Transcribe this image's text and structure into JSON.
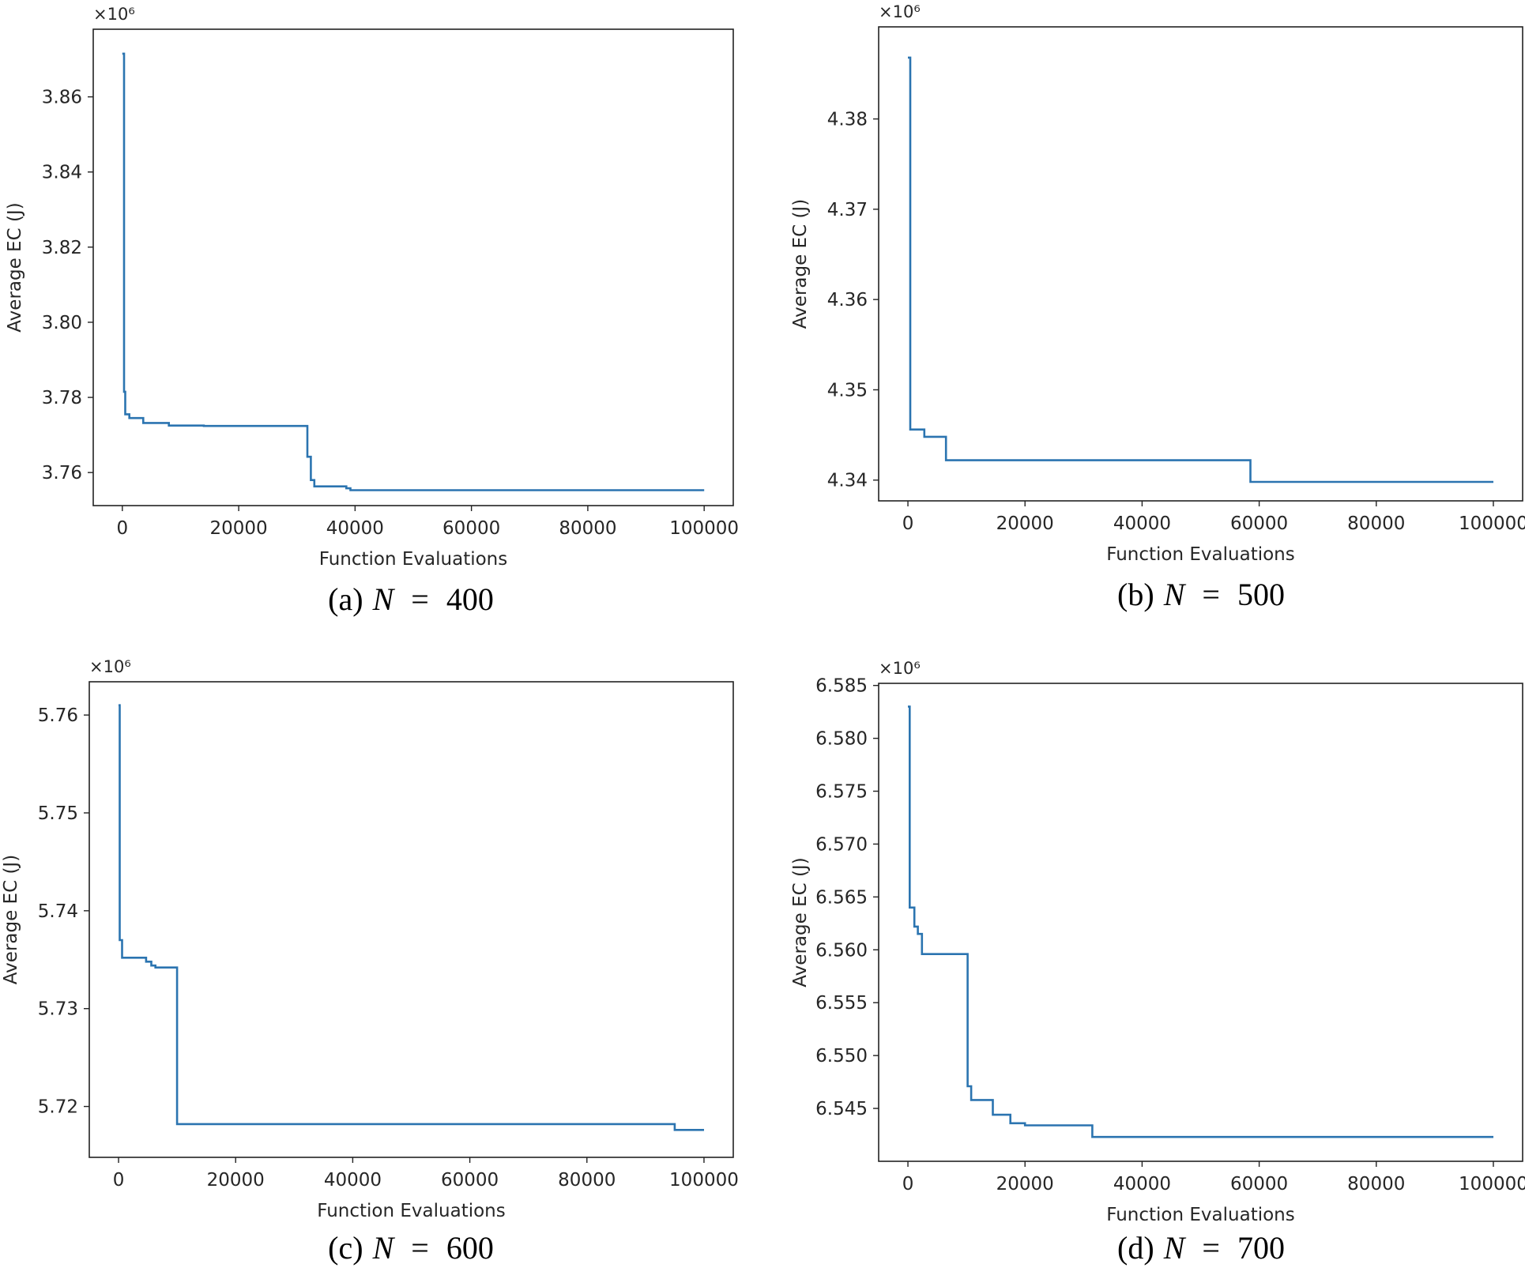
{
  "colors": {
    "line": "#2b74b0",
    "axes": "#222222",
    "text": "#262626"
  },
  "chart_data": [
    {
      "type": "line",
      "caption": {
        "label": "(a)",
        "var": "N",
        "eq": "=",
        "value": "400"
      },
      "title": "",
      "xlabel": "Function Evaluations",
      "ylabel": "Average EC (J)",
      "y_multiplier": "×10⁶",
      "xlim": [
        -5000,
        105000
      ],
      "ylim": [
        3.7512,
        3.878
      ],
      "xticks": [
        0,
        20000,
        40000,
        60000,
        80000,
        100000
      ],
      "xtick_labels": [
        "0",
        "20000",
        "40000",
        "60000",
        "80000",
        "100000"
      ],
      "yticks": [
        3.76,
        3.78,
        3.8,
        3.82,
        3.84,
        3.86
      ],
      "ytick_labels": [
        "3.76",
        "3.78",
        "3.80",
        "3.82",
        "3.84",
        "3.86"
      ],
      "grid": false,
      "series": [
        {
          "name": "Average EC",
          "step": true,
          "points": [
            [
              0,
              3.8715
            ],
            [
              300,
              3.7815
            ],
            [
              500,
              3.7755
            ],
            [
              1200,
              3.7745
            ],
            [
              3600,
              3.7732
            ],
            [
              8000,
              3.7725
            ],
            [
              14000,
              3.7724
            ],
            [
              31500,
              3.7724
            ],
            [
              31800,
              3.7642
            ],
            [
              32400,
              3.758
            ],
            [
              33000,
              3.7563
            ],
            [
              38500,
              3.7558
            ],
            [
              39200,
              3.7553
            ],
            [
              100000,
              3.7553
            ]
          ]
        }
      ]
    },
    {
      "type": "line",
      "caption": {
        "label": "(b)",
        "var": "N",
        "eq": "=",
        "value": "500"
      },
      "title": "",
      "xlabel": "Function Evaluations",
      "ylabel": "Average EC (J)",
      "y_multiplier": "×10⁶",
      "xlim": [
        -5000,
        105000
      ],
      "ylim": [
        4.3377,
        4.3902
      ],
      "xticks": [
        0,
        20000,
        40000,
        60000,
        80000,
        100000
      ],
      "xtick_labels": [
        "0",
        "20000",
        "40000",
        "60000",
        "80000",
        "100000"
      ],
      "yticks": [
        4.34,
        4.35,
        4.36,
        4.37,
        4.38
      ],
      "ytick_labels": [
        "4.34",
        "4.35",
        "4.36",
        "4.37",
        "4.38"
      ],
      "grid": false,
      "series": [
        {
          "name": "Average EC",
          "step": true,
          "points": [
            [
              0,
              4.3868
            ],
            [
              400,
              4.3456
            ],
            [
              2800,
              4.3448
            ],
            [
              6500,
              4.3422
            ],
            [
              58500,
              4.3398
            ],
            [
              100000,
              4.3398
            ]
          ]
        }
      ]
    },
    {
      "type": "line",
      "caption": {
        "label": "(c)",
        "var": "N",
        "eq": "=",
        "value": "600"
      },
      "title": "",
      "xlabel": "Function Evaluations",
      "ylabel": "Average EC (J)",
      "y_multiplier": "×10⁶",
      "xlim": [
        -5000,
        105000
      ],
      "ylim": [
        5.7148,
        5.7634
      ],
      "xticks": [
        0,
        20000,
        40000,
        60000,
        80000,
        100000
      ],
      "xtick_labels": [
        "0",
        "20000",
        "40000",
        "60000",
        "80000",
        "100000"
      ],
      "yticks": [
        5.72,
        5.73,
        5.74,
        5.75,
        5.76
      ],
      "ytick_labels": [
        "5.72",
        "5.73",
        "5.74",
        "5.75",
        "5.76"
      ],
      "grid": false,
      "series": [
        {
          "name": "Average EC",
          "step": true,
          "points": [
            [
              0,
              5.761
            ],
            [
              200,
              5.737
            ],
            [
              600,
              5.7352
            ],
            [
              4700,
              5.7348
            ],
            [
              5600,
              5.7344
            ],
            [
              6300,
              5.7342
            ],
            [
              10000,
              5.7182
            ],
            [
              95000,
              5.7176
            ],
            [
              100000,
              5.7176
            ]
          ]
        }
      ]
    },
    {
      "type": "line",
      "caption": {
        "label": "(d)",
        "var": "N",
        "eq": "=",
        "value": "700"
      },
      "title": "",
      "xlabel": "Function Evaluations",
      "ylabel": "Average EC (J)",
      "y_multiplier": "×10⁶",
      "xlim": [
        -5000,
        105000
      ],
      "ylim": [
        6.54,
        6.5852
      ],
      "xticks": [
        0,
        20000,
        40000,
        60000,
        80000,
        100000
      ],
      "xtick_labels": [
        "0",
        "20000",
        "40000",
        "60000",
        "80000",
        "100000"
      ],
      "yticks": [
        6.545,
        6.55,
        6.555,
        6.56,
        6.565,
        6.57,
        6.575,
        6.58,
        6.585
      ],
      "ytick_labels": [
        "6.545",
        "6.550",
        "6.555",
        "6.560",
        "6.565",
        "6.570",
        "6.575",
        "6.580",
        "6.585"
      ],
      "grid": false,
      "series": [
        {
          "name": "Average EC",
          "step": true,
          "points": [
            [
              0,
              6.583
            ],
            [
              300,
              6.564
            ],
            [
              800,
              6.564
            ],
            [
              1100,
              6.5622
            ],
            [
              1700,
              6.5615
            ],
            [
              2400,
              6.5596
            ],
            [
              10200,
              6.5471
            ],
            [
              10800,
              6.5458
            ],
            [
              14500,
              6.5444
            ],
            [
              17500,
              6.5436
            ],
            [
              20000,
              6.5434
            ],
            [
              31500,
              6.5423
            ],
            [
              100000,
              6.5423
            ]
          ]
        }
      ]
    }
  ]
}
